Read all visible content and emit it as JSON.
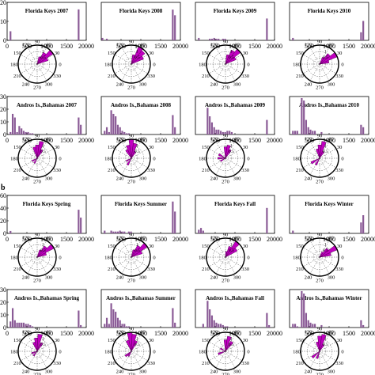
{
  "figure": {
    "panel_letter_b": "b",
    "bar_color": "#8a5a96",
    "rose_fill": "#c000c0",
    "rose_edge": "#5a005a",
    "ring_labels": [
      "0.5",
      "1",
      "1.5"
    ],
    "angle_labels": [
      "90",
      "120",
      "60",
      "150",
      "30",
      "180",
      "0",
      "210",
      "330",
      "240",
      "300",
      "270"
    ]
  },
  "chart_data": [
    {
      "type": "bar",
      "title": "Florida Keys 2007",
      "x_ticks": [
        "0",
        "500",
        "1000",
        "1500",
        "20000"
      ],
      "y_ticks": [
        "20",
        "10",
        "0"
      ],
      "ylim": [
        0,
        20
      ],
      "values": [
        0,
        5,
        0,
        0,
        0,
        0,
        0,
        0,
        0,
        0,
        0,
        0,
        0,
        0,
        0,
        0,
        0,
        0,
        0,
        0,
        0,
        0,
        0,
        0,
        0,
        0,
        0,
        0,
        0,
        0,
        0,
        0,
        17,
        0,
        0,
        0
      ]
    },
    {
      "type": "bar",
      "title": "Florida Keys 2008",
      "x_ticks": [
        "500",
        "1000",
        "1500",
        "20000"
      ],
      "ylim": [
        0,
        45
      ],
      "values": [
        3,
        0,
        2,
        0,
        0,
        0,
        0,
        0,
        0,
        0,
        0,
        0,
        0,
        0,
        0,
        0,
        0,
        0,
        0,
        0,
        0,
        0,
        0,
        0,
        0,
        0,
        0,
        0,
        0,
        0,
        0,
        0,
        38,
        31,
        0,
        0
      ]
    },
    {
      "type": "bar",
      "title": "Florida Keys 2009",
      "x_ticks": [
        "500",
        "1000",
        "1500",
        "20000"
      ],
      "ylim": [
        0,
        45
      ],
      "values": [
        0,
        3,
        0,
        0,
        0,
        0,
        2,
        2,
        3,
        2,
        2,
        0,
        2,
        2,
        0,
        0,
        0,
        0,
        0,
        0,
        0,
        0,
        0,
        0,
        0,
        0,
        0,
        0,
        0,
        0,
        0,
        0,
        27,
        0,
        0,
        0
      ]
    },
    {
      "type": "bar",
      "title": "Florida Keys 2010",
      "x_ticks": [
        "500",
        "1000",
        "1500",
        "20000"
      ],
      "ylim": [
        0,
        45
      ],
      "values": [
        0,
        3,
        0,
        0,
        0,
        0,
        0,
        0,
        0,
        0,
        0,
        0,
        0,
        0,
        0,
        0,
        0,
        0,
        0,
        0,
        0,
        0,
        0,
        0,
        0,
        0,
        0,
        0,
        0,
        0,
        0,
        0,
        10,
        24,
        0,
        0
      ]
    },
    {
      "type": "bar",
      "title": "Andros Is.,Bahamas 2007",
      "x_ticks": [
        "0",
        "500",
        "1000",
        "1500",
        "20000"
      ],
      "y_ticks": [
        "30",
        "20",
        "10",
        "0"
      ],
      "ylim": [
        0,
        30
      ],
      "values": [
        0,
        2,
        17,
        14,
        2,
        7,
        5,
        3,
        2,
        2,
        1,
        1,
        0,
        0,
        0,
        0,
        0,
        0,
        0,
        0,
        0,
        0,
        0,
        0,
        0,
        0,
        0,
        0,
        0,
        0,
        0,
        0,
        14,
        8,
        0,
        0
      ]
    },
    {
      "type": "bar",
      "title": "Andros Is.,Bahamas 2008",
      "x_ticks": [
        "500",
        "1000",
        "1500",
        "20000"
      ],
      "ylim": [
        0,
        30
      ],
      "values": [
        0,
        3,
        6,
        2,
        20,
        17,
        15,
        8,
        6,
        3,
        2,
        1,
        1,
        0,
        0,
        0,
        0,
        0,
        0,
        0,
        0,
        0,
        0,
        0,
        0,
        0,
        0,
        0,
        0,
        0,
        0,
        0,
        16,
        6,
        0,
        0
      ]
    },
    {
      "type": "bar",
      "title": "Andros Is.,Bahamas 2009",
      "x_ticks": [
        "500",
        "1000",
        "1500",
        "20000"
      ],
      "ylim": [
        0,
        30
      ],
      "values": [
        0,
        0,
        0,
        0,
        0,
        22,
        15,
        10,
        6,
        4,
        4,
        3,
        2,
        2,
        3,
        3,
        2,
        0,
        0,
        0,
        0,
        0,
        0,
        0,
        0,
        0,
        0,
        0,
        0,
        0,
        0,
        0,
        12,
        0,
        0,
        0
      ]
    },
    {
      "type": "bar",
      "title": "Andros Is.,Bahamas 2010",
      "x_ticks": [
        "500",
        "1000",
        "1500",
        "20000"
      ],
      "ylim": [
        0,
        30
      ],
      "values": [
        0,
        3,
        3,
        3,
        0,
        30,
        28,
        12,
        6,
        4,
        3,
        3,
        0,
        0,
        2,
        0,
        0,
        0,
        0,
        0,
        0,
        0,
        0,
        0,
        0,
        0,
        0,
        0,
        0,
        0,
        0,
        0,
        8,
        6,
        0,
        0
      ]
    },
    {
      "type": "bar",
      "title": "Florida Keys Spring",
      "x_ticks": [
        "0",
        "500",
        "1000",
        "1500",
        "20000"
      ],
      "y_ticks": [
        "60",
        "40",
        "20",
        "0"
      ],
      "ylim": [
        0,
        60
      ],
      "values": [
        0,
        4,
        0,
        0,
        0,
        0,
        0,
        0,
        0,
        0,
        0,
        0,
        0,
        0,
        0,
        0,
        0,
        0,
        0,
        0,
        0,
        0,
        0,
        0,
        0,
        0,
        0,
        0,
        0,
        0,
        0,
        0,
        39,
        26,
        0,
        0
      ]
    },
    {
      "type": "bar",
      "title": "Florida Keys Summer",
      "x_ticks": [
        "500",
        "1000",
        "1500",
        "20000"
      ],
      "ylim": [
        0,
        40
      ],
      "values": [
        0,
        3,
        0,
        0,
        3,
        2,
        2,
        2,
        3,
        2,
        2,
        0,
        2,
        2,
        0,
        0,
        0,
        0,
        0,
        0,
        0,
        0,
        0,
        0,
        0,
        0,
        0,
        0,
        0,
        0,
        0,
        0,
        35,
        24,
        0,
        0
      ]
    },
    {
      "type": "bar",
      "title": "Florida Keys Fall",
      "x_ticks": [
        "500",
        "1000",
        "1500",
        "20000"
      ],
      "ylim": [
        0,
        40
      ],
      "values": [
        0,
        4,
        6,
        3,
        0,
        0,
        0,
        0,
        0,
        0,
        0,
        0,
        0,
        0,
        0,
        0,
        0,
        0,
        0,
        0,
        0,
        0,
        0,
        0,
        0,
        0,
        0,
        0,
        0,
        0,
        0,
        0,
        28,
        0,
        0,
        0
      ]
    },
    {
      "type": "bar",
      "title": "Florida Keys Winter",
      "x_ticks": [
        "500",
        "1000",
        "1500",
        "20000"
      ],
      "ylim": [
        0,
        40
      ],
      "values": [
        0,
        3,
        0,
        0,
        0,
        0,
        0,
        0,
        0,
        0,
        0,
        0,
        0,
        0,
        0,
        0,
        0,
        0,
        0,
        0,
        0,
        0,
        0,
        0,
        0,
        0,
        0,
        0,
        0,
        0,
        0,
        0,
        12,
        20,
        0,
        0
      ]
    },
    {
      "type": "bar",
      "title": "Andros Is.,Bahamas Spring",
      "x_ticks": [
        "0",
        "500",
        "1000",
        "1500",
        "20000"
      ],
      "y_ticks": [
        "30",
        "20",
        "10",
        "0"
      ],
      "ylim": [
        0,
        30
      ],
      "values": [
        0,
        5,
        16,
        6,
        4,
        4,
        4,
        4,
        3,
        3,
        2,
        1,
        0,
        0,
        0,
        0,
        0,
        0,
        0,
        0,
        0,
        0,
        0,
        0,
        0,
        0,
        0,
        0,
        0,
        0,
        0,
        0,
        14,
        2,
        0,
        0
      ]
    },
    {
      "type": "bar",
      "title": "Andros Is.,Bahamas Summer",
      "x_ticks": [
        "500",
        "1000",
        "1500",
        "20000"
      ],
      "ylim": [
        0,
        30
      ],
      "values": [
        0,
        3,
        8,
        3,
        20,
        15,
        13,
        8,
        6,
        3,
        3,
        1,
        1,
        0,
        0,
        0,
        0,
        0,
        0,
        0,
        0,
        0,
        0,
        0,
        0,
        0,
        0,
        0,
        0,
        0,
        0,
        0,
        16,
        4,
        0,
        0
      ]
    },
    {
      "type": "bar",
      "title": "Andros Is.,Bahamas Fall",
      "x_ticks": [
        "500",
        "1000",
        "1500",
        "20000"
      ],
      "ylim": [
        0,
        30
      ],
      "values": [
        0,
        0,
        0,
        3,
        0,
        22,
        15,
        10,
        6,
        4,
        3,
        3,
        2,
        1,
        1,
        0,
        0,
        0,
        0,
        0,
        0,
        0,
        0,
        0,
        0,
        0,
        0,
        0,
        0,
        0,
        0,
        0,
        12,
        2,
        0,
        0
      ]
    },
    {
      "type": "bar",
      "title": "Andros Is.,Bahamas Winter",
      "x_ticks": [
        "500",
        "1000",
        "1500",
        "20000"
      ],
      "ylim": [
        0,
        30
      ],
      "values": [
        0,
        3,
        3,
        1,
        0,
        30,
        28,
        12,
        6,
        4,
        3,
        3,
        0,
        0,
        2,
        0,
        0,
        0,
        0,
        0,
        0,
        0,
        0,
        0,
        0,
        0,
        0,
        0,
        0,
        0,
        0,
        0,
        6,
        2,
        0,
        0
      ]
    }
  ],
  "roses": [
    {
      "bins": [
        [
          25,
          0.6
        ],
        [
          40,
          1.0
        ],
        [
          55,
          0.7
        ],
        [
          70,
          0.4
        ]
      ]
    },
    {
      "bins": [
        [
          30,
          0.7
        ],
        [
          45,
          0.9
        ],
        [
          60,
          1.0
        ],
        [
          75,
          0.5
        ]
      ]
    },
    {
      "bins": [
        [
          30,
          0.6
        ],
        [
          45,
          1.0
        ],
        [
          60,
          0.8
        ],
        [
          75,
          0.5
        ]
      ]
    },
    {
      "bins": [
        [
          15,
          0.5
        ],
        [
          30,
          1.0
        ],
        [
          45,
          0.7
        ],
        [
          60,
          0.4
        ]
      ]
    },
    {
      "bins": [
        [
          60,
          0.5
        ],
        [
          75,
          0.9
        ],
        [
          90,
          0.7
        ],
        [
          105,
          0.6
        ],
        [
          210,
          0.3
        ],
        [
          240,
          0.3
        ]
      ]
    },
    {
      "bins": [
        [
          60,
          0.4
        ],
        [
          75,
          0.8
        ],
        [
          90,
          1.0
        ],
        [
          105,
          0.7
        ],
        [
          120,
          0.5
        ],
        [
          240,
          0.4
        ],
        [
          210,
          0.3
        ]
      ]
    },
    {
      "bins": [
        [
          60,
          0.5
        ],
        [
          75,
          0.7
        ],
        [
          90,
          0.6
        ],
        [
          150,
          0.4
        ],
        [
          180,
          0.4
        ],
        [
          210,
          0.3
        ]
      ]
    },
    {
      "bins": [
        [
          60,
          0.4
        ],
        [
          75,
          0.9
        ],
        [
          90,
          0.7
        ],
        [
          105,
          0.5
        ],
        [
          210,
          0.5
        ],
        [
          240,
          0.4
        ]
      ]
    },
    {
      "bins": [
        [
          20,
          0.5
        ],
        [
          35,
          1.0
        ],
        [
          50,
          0.7
        ],
        [
          65,
          0.4
        ]
      ]
    },
    {
      "bins": [
        [
          25,
          0.6
        ],
        [
          40,
          1.0
        ],
        [
          55,
          0.7
        ],
        [
          70,
          0.4
        ]
      ]
    },
    {
      "bins": [
        [
          35,
          0.7
        ],
        [
          50,
          1.0
        ],
        [
          65,
          0.6
        ],
        [
          80,
          0.3
        ]
      ]
    },
    {
      "bins": [
        [
          15,
          0.6
        ],
        [
          30,
          1.0
        ],
        [
          45,
          0.6
        ],
        [
          60,
          0.3
        ]
      ]
    },
    {
      "bins": [
        [
          60,
          0.5
        ],
        [
          80,
          0.9
        ],
        [
          95,
          0.7
        ],
        [
          110,
          0.5
        ],
        [
          200,
          0.3
        ],
        [
          230,
          0.3
        ]
      ]
    },
    {
      "bins": [
        [
          65,
          0.6
        ],
        [
          80,
          0.9
        ],
        [
          95,
          1.0
        ],
        [
          110,
          0.6
        ],
        [
          220,
          0.4
        ],
        [
          240,
          0.3
        ]
      ]
    },
    {
      "bins": [
        [
          55,
          0.6
        ],
        [
          75,
          0.8
        ],
        [
          90,
          0.6
        ],
        [
          150,
          0.3
        ],
        [
          200,
          0.4
        ]
      ]
    },
    {
      "bins": [
        [
          60,
          0.4
        ],
        [
          75,
          0.9
        ],
        [
          90,
          0.8
        ],
        [
          105,
          0.5
        ],
        [
          220,
          0.5
        ],
        [
          250,
          0.4
        ]
      ]
    }
  ]
}
